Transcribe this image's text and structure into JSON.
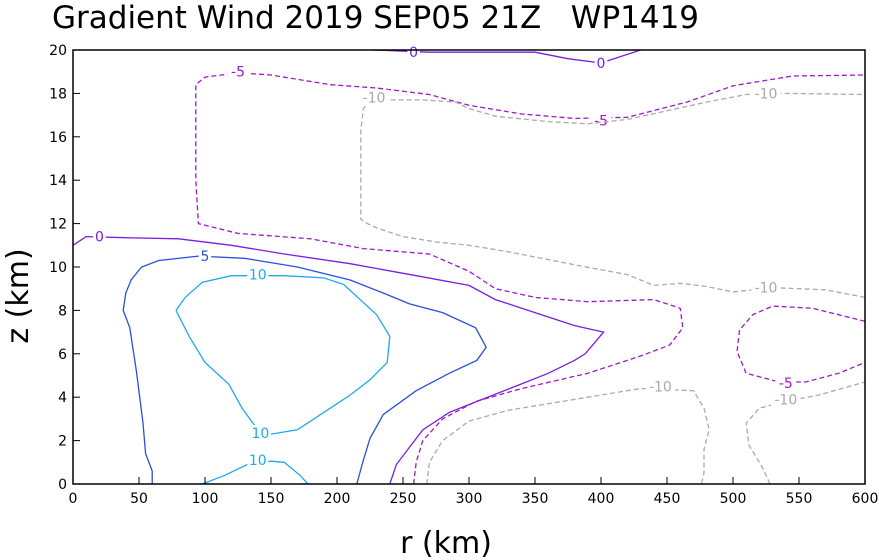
{
  "chart_data": {
    "type": "contour",
    "title": "Gradient Wind 2019 SEP05 21Z   WP1419",
    "xlabel": "r (km)",
    "ylabel": "z (km)",
    "xlim": [
      0,
      600
    ],
    "ylim": [
      0,
      20
    ],
    "xticks": [
      "0",
      "50",
      "100",
      "150",
      "200",
      "250",
      "300",
      "350",
      "400",
      "450",
      "500",
      "550",
      "600"
    ],
    "yticks": [
      "0",
      "2",
      "4",
      "6",
      "8",
      "10",
      "12",
      "14",
      "16",
      "18",
      "20"
    ],
    "contours": [
      {
        "level": "10",
        "color": "#1ea9f0",
        "dashed": false,
        "points": [
          [
            78,
            8
          ],
          [
            85,
            8.6
          ],
          [
            98,
            9.3
          ],
          [
            120,
            9.6
          ],
          [
            160,
            9.6
          ],
          [
            190,
            9.5
          ],
          [
            205,
            9.2
          ],
          [
            230,
            7.8
          ],
          [
            240,
            6.8
          ],
          [
            238,
            5.6
          ],
          [
            225,
            4.8
          ],
          [
            210,
            4.1
          ],
          [
            195,
            3.5
          ],
          [
            170,
            2.5
          ],
          [
            150,
            2.3
          ],
          [
            140,
            2.5
          ],
          [
            128,
            3.5
          ],
          [
            118,
            4.6
          ],
          [
            100,
            5.6
          ],
          [
            88,
            6.8
          ],
          [
            78,
            8
          ]
        ],
        "labels": [
          {
            "x": 140,
            "y": 9.65,
            "text": "10"
          },
          {
            "x": 142,
            "y": 2.35,
            "text": "10"
          }
        ]
      },
      {
        "level": "10",
        "color": "#1ea9f0",
        "dashed": false,
        "points": [
          [
            98,
            0
          ],
          [
            115,
            0.4
          ],
          [
            132,
            0.9
          ],
          [
            150,
            1.05
          ],
          [
            160,
            1.0
          ],
          [
            172,
            0.4
          ],
          [
            178,
            0
          ]
        ],
        "labels": [
          {
            "x": 140,
            "y": 1.1,
            "text": "10"
          }
        ]
      },
      {
        "level": "5",
        "color": "#2850dc",
        "dashed": false,
        "points": [
          [
            60,
            0
          ],
          [
            60,
            0.6
          ],
          [
            55,
            1.4
          ],
          [
            53,
            2.8
          ],
          [
            48,
            5.2
          ],
          [
            43,
            7.2
          ],
          [
            38,
            8.0
          ],
          [
            40,
            8.8
          ],
          [
            44,
            9.4
          ],
          [
            52,
            10.0
          ],
          [
            65,
            10.3
          ],
          [
            95,
            10.5
          ],
          [
            130,
            10.4
          ],
          [
            170,
            10.0
          ],
          [
            210,
            9.4
          ],
          [
            235,
            8.8
          ],
          [
            255,
            8.3
          ],
          [
            280,
            7.9
          ],
          [
            305,
            7.2
          ],
          [
            313,
            6.3
          ],
          [
            306,
            5.7
          ],
          [
            285,
            5.1
          ],
          [
            260,
            4.3
          ],
          [
            235,
            3.2
          ],
          [
            225,
            2.1
          ],
          [
            220,
            1.1
          ],
          [
            215,
            0
          ]
        ],
        "labels": [
          {
            "x": 100,
            "y": 10.5,
            "text": "5"
          }
        ]
      },
      {
        "level": "0",
        "color": "#7a1ee0",
        "dashed": false,
        "points": [
          [
            0,
            11.0
          ],
          [
            10,
            11.4
          ],
          [
            40,
            11.35
          ],
          [
            80,
            11.3
          ],
          [
            120,
            11.0
          ],
          [
            160,
            10.6
          ],
          [
            210,
            10.15
          ],
          [
            260,
            9.6
          ],
          [
            300,
            9.15
          ],
          [
            320,
            8.5
          ],
          [
            350,
            7.9
          ],
          [
            380,
            7.3
          ],
          [
            402,
            7.0
          ],
          [
            395,
            6.5
          ],
          [
            388,
            6.0
          ],
          [
            380,
            5.7
          ],
          [
            360,
            5.1
          ],
          [
            335,
            4.5
          ],
          [
            310,
            3.9
          ],
          [
            285,
            3.3
          ],
          [
            265,
            2.5
          ],
          [
            255,
            1.7
          ],
          [
            245,
            0.9
          ],
          [
            240,
            0
          ]
        ],
        "labels": [
          {
            "x": 20,
            "y": 11.4,
            "text": "0"
          }
        ]
      },
      {
        "level": "0",
        "color": "#7a1ee0",
        "dashed": false,
        "points": [
          [
            228,
            20.0
          ],
          [
            270,
            19.9
          ],
          [
            300,
            19.9
          ],
          [
            350,
            19.9
          ],
          [
            375,
            19.6
          ],
          [
            400,
            19.4
          ],
          [
            415,
            19.7
          ],
          [
            430,
            20.0
          ]
        ],
        "labels": [
          {
            "x": 258,
            "y": 19.9,
            "text": "0"
          },
          {
            "x": 400,
            "y": 19.4,
            "text": "0"
          }
        ]
      },
      {
        "level": "-5",
        "color": "#a018c8",
        "dashed": true,
        "points": [
          [
            258,
            0
          ],
          [
            260,
            1
          ],
          [
            265,
            2
          ],
          [
            280,
            3
          ],
          [
            305,
            3.8
          ],
          [
            340,
            4.4
          ],
          [
            390,
            5.1
          ],
          [
            430,
            5.9
          ],
          [
            452,
            6.4
          ],
          [
            462,
            7.2
          ],
          [
            460,
            8.1
          ],
          [
            440,
            8.5
          ],
          [
            390,
            8.4
          ],
          [
            350,
            8.6
          ],
          [
            320,
            9.0
          ],
          [
            300,
            9.8
          ],
          [
            270,
            10.6
          ],
          [
            220,
            10.85
          ],
          [
            180,
            11.3
          ],
          [
            125,
            11.55
          ],
          [
            95,
            12.0
          ],
          [
            93,
            14.0
          ],
          [
            93,
            18.4
          ],
          [
            100,
            18.75
          ],
          [
            125,
            18.95
          ],
          [
            150,
            18.85
          ],
          [
            175,
            18.6
          ],
          [
            195,
            18.4
          ],
          [
            230,
            18.25
          ],
          [
            270,
            17.95
          ],
          [
            300,
            17.45
          ],
          [
            340,
            17.05
          ],
          [
            380,
            16.85
          ],
          [
            420,
            16.9
          ],
          [
            465,
            17.6
          ],
          [
            500,
            18.35
          ],
          [
            545,
            18.8
          ],
          [
            600,
            18.85
          ]
        ],
        "labels": [
          {
            "x": 125,
            "y": 19.0,
            "text": "-5"
          },
          {
            "x": 400,
            "y": 16.75,
            "text": "-5"
          }
        ]
      },
      {
        "level": "-5",
        "color": "#a018c8",
        "dashed": true,
        "points": [
          [
            600,
            7.5
          ],
          [
            560,
            8.1
          ],
          [
            530,
            8.2
          ],
          [
            515,
            7.8
          ],
          [
            505,
            7.1
          ],
          [
            503,
            6.1
          ],
          [
            510,
            5.1
          ],
          [
            535,
            4.7
          ],
          [
            555,
            4.7
          ],
          [
            580,
            5.1
          ],
          [
            600,
            5.6
          ]
        ],
        "labels": [
          {
            "x": 540,
            "y": 4.65,
            "text": "-5"
          }
        ]
      },
      {
        "level": "-10",
        "color": "#aaaaaa",
        "dashed": true,
        "points": [
          [
            268,
            0
          ],
          [
            270,
            1
          ],
          [
            280,
            2
          ],
          [
            300,
            2.9
          ],
          [
            330,
            3.4
          ],
          [
            380,
            3.9
          ],
          [
            430,
            4.4
          ],
          [
            470,
            4.3
          ],
          [
            478,
            3.5
          ],
          [
            482,
            2.5
          ],
          [
            478,
            1.6
          ],
          [
            478,
            0.5
          ],
          [
            476,
            0
          ]
        ],
        "labels": [
          {
            "x": 445,
            "y": 4.5,
            "text": "-10"
          }
        ]
      },
      {
        "level": "-10",
        "color": "#aaaaaa",
        "dashed": true,
        "points": [
          [
            600,
            8.6
          ],
          [
            570,
            8.95
          ],
          [
            530,
            9.05
          ],
          [
            500,
            8.85
          ],
          [
            480,
            9.1
          ],
          [
            460,
            9.25
          ],
          [
            440,
            9.15
          ],
          [
            420,
            9.65
          ],
          [
            380,
            10.1
          ],
          [
            330,
            10.7
          ],
          [
            300,
            11.0
          ],
          [
            275,
            11.15
          ],
          [
            250,
            11.4
          ],
          [
            230,
            11.8
          ],
          [
            223,
            12.0
          ],
          [
            218,
            12.2
          ],
          [
            218,
            16.3
          ],
          [
            220,
            17.3
          ],
          [
            225,
            17.6
          ],
          [
            240,
            17.7
          ],
          [
            265,
            17.7
          ],
          [
            290,
            17.6
          ],
          [
            300,
            17.3
          ],
          [
            320,
            16.95
          ],
          [
            360,
            16.7
          ],
          [
            390,
            16.6
          ],
          [
            420,
            16.8
          ],
          [
            450,
            17.2
          ],
          [
            480,
            17.6
          ],
          [
            510,
            17.95
          ],
          [
            540,
            18.0
          ],
          [
            600,
            17.95
          ]
        ],
        "labels": [
          {
            "x": 228,
            "y": 17.8,
            "text": "-10"
          },
          {
            "x": 525,
            "y": 18.0,
            "text": "-10"
          },
          {
            "x": 525,
            "y": 9.05,
            "text": "-10"
          }
        ]
      },
      {
        "level": "-10",
        "color": "#aaaaaa",
        "dashed": true,
        "points": [
          [
            528,
            0
          ],
          [
            522,
            0.8
          ],
          [
            512,
            1.8
          ],
          [
            510,
            2.8
          ],
          [
            520,
            3.5
          ],
          [
            540,
            3.8
          ],
          [
            565,
            4.1
          ],
          [
            600,
            4.7
          ]
        ],
        "labels": [
          {
            "x": 540,
            "y": 3.9,
            "text": "-10"
          }
        ]
      }
    ]
  }
}
